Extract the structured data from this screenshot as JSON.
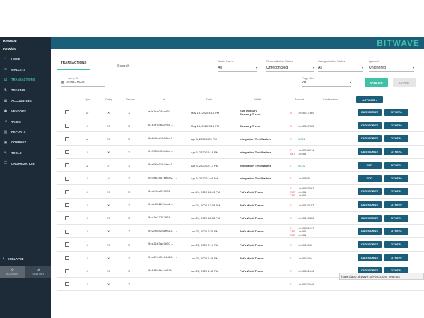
{
  "app": {
    "org_name": "Bitwave",
    "user_name": "Pat White",
    "logo": "BITWAVE",
    "brand_color": "#1b5e79",
    "accent_color": "#3fc1a5"
  },
  "sidebar": {
    "items": [
      {
        "label": "HOME",
        "icon": "home-icon"
      },
      {
        "label": "WALLETS",
        "icon": "wallet-icon"
      },
      {
        "label": "TRANSACTIONS",
        "icon": "transactions-icon",
        "active": true
      },
      {
        "label": "TRADING",
        "icon": "trading-icon"
      },
      {
        "label": "ACCOUNTING",
        "icon": "accounting-icon"
      },
      {
        "label": "VENDORS",
        "icon": "vendors-icon"
      },
      {
        "label": "TAXES",
        "icon": "taxes-icon"
      },
      {
        "label": "REPORTS",
        "icon": "reports-icon"
      },
      {
        "label": "COMPANY",
        "icon": "company-icon"
      },
      {
        "label": "TOOLS",
        "icon": "tools-icon"
      },
      {
        "label": "ORGANIZATION",
        "icon": "organization-icon"
      }
    ],
    "collapse_label": "COLLAPSE",
    "account_label": "ACCOUNT",
    "signout_label": "SIGN OUT"
  },
  "main": {
    "tab_label": "TRANSACTIONS",
    "search_placeholder": "Search",
    "filters": {
      "wallet_name": {
        "label": "Wallet Name",
        "value": "All"
      },
      "reconciliation": {
        "label": "Reconciliation Status",
        "value": "Unreconciled"
      },
      "categorization": {
        "label": "Categorization Status",
        "value": "All"
      },
      "ignored": {
        "label": "Ignored",
        "value": "Unignored"
      },
      "jump_to": {
        "label": "Jump To",
        "value": "2020-08-01"
      },
      "page_size": {
        "label": "Page Size",
        "value": "20"
      }
    },
    "earlier_label": "EARLIER",
    "later_label": "LATER"
  },
  "table": {
    "headers": {
      "type": "Type",
      "categ": "Categ",
      "reconc": "Reconc",
      "id": "Id",
      "date": "Date",
      "wallet": "Wallet",
      "amount": "Amount",
      "confirmation": "Confirmation",
      "actions": "ACTIONS"
    },
    "rows": [
      {
        "type": "sync",
        "categ": "x",
        "reconc": "x",
        "id": "a8e7cc94cdd02...",
        "date": "May 13, 2020 4:15 PM",
        "wallet": [
          "EMI Treasury",
          "Treasury Trezor"
        ],
        "amounts": [
          {
            "sym": "B",
            "val": "-0.00017869"
          }
        ],
        "pos": false,
        "primary": "CATEGORIZE",
        "secondary": "OTHER"
      },
      {
        "type": "out",
        "categ": "x",
        "reconc": "x",
        "id": "6163f8d6a4f4d...",
        "date": "May 13, 2020 3:14 PM",
        "wallet": [
          "Treasury Trezor"
        ],
        "amounts": [
          {
            "sym": "B",
            "val": "-0.00067505"
          }
        ],
        "pos": false,
        "primary": "CATEGORIZE",
        "secondary": "OTHER"
      },
      {
        "type": "in",
        "categ": "x",
        "reconc": "x",
        "id": "0ebb6de1b9fe42...",
        "date": "Apr 3, 2020 1:23 PM",
        "wallet": [
          "Integration Test Wallets"
        ],
        "amounts": [
          {
            "sym": "Ξ",
            "val": "0.002"
          }
        ],
        "pos": true,
        "primary": "CATEGORIZE",
        "secondary": "OTHER"
      },
      {
        "type": "out",
        "categ": "x",
        "reconc": "x",
        "id": "0x7356b53fd4d...",
        "date": "Apr 3, 2020 12:16 PM",
        "wallet": [
          "Integration Test Wallets"
        ],
        "amounts": [
          {
            "sym": "Ξ",
            "val": "-0.00026614"
          },
          {
            "sym": "BAT",
            "val": "-0.001"
          }
        ],
        "pos": false,
        "primary": "CATEGORIZE",
        "secondary": "OTHER"
      },
      {
        "type": "in",
        "categ": "check",
        "reconc": "x",
        "id": "0xe5fe01b2da42...",
        "date": "Apr 3, 2020 12:13 PM",
        "wallet": [
          "Integration Test Wallets"
        ],
        "amounts": [
          {
            "sym": "Ξ",
            "val": "0.002"
          }
        ],
        "pos": true,
        "primary": "EDIT",
        "secondary": "OTHER"
      },
      {
        "type": "out",
        "categ": "check",
        "reconc": "x",
        "id": "0x4e6189fee4d9...",
        "date": "Apr 3, 2020 11:46 AM",
        "wallet": [
          "Integration Test Wallets"
        ],
        "amounts": [
          {
            "sym": "Ξ",
            "val": "-0.00985"
          }
        ],
        "pos": false,
        "primary": "EDIT",
        "secondary": "OTHER"
      },
      {
        "type": "out",
        "categ": "x",
        "reconc": "x",
        "id": "0xab2ce931530...",
        "date": "Jun 24, 2020 12:40 PM",
        "wallet": [
          "Pat's Work Trezor"
        ],
        "amounts": [
          {
            "sym": "Ξ",
            "val": "-0.00153691"
          },
          {
            "sym": "CHT",
            "val": "-0.001"
          },
          {
            "sym": "CHT",
            "val": "-0.001"
          }
        ],
        "pos": false,
        "primary": "CATEGORIZE",
        "secondary": "OTHER"
      },
      {
        "type": "out",
        "categ": "x",
        "reconc": "x",
        "id": "0xab5b929fea2...",
        "date": "Jun 24, 2020 12:39 PM",
        "wallet": [
          "Pat's Work Trezor"
        ],
        "amounts": [
          {
            "sym": "Ξ",
            "val": "-0.00133117"
          }
        ],
        "pos": false,
        "primary": "CATEGORIZE",
        "secondary": "OTHER"
      },
      {
        "type": "out",
        "categ": "x",
        "reconc": "x",
        "id": "0xa7e72752658...",
        "date": "Jun 24, 2020 12:38 PM",
        "wallet": [
          "Pat's Work Trezor"
        ],
        "amounts": [
          {
            "sym": "Ξ",
            "val": "-0.00610436"
          }
        ],
        "pos": false,
        "primary": "CATEGORIZE",
        "secondary": "OTHER"
      },
      {
        "type": "out",
        "categ": "x",
        "reconc": "x",
        "id": "0x2c0c82daeb23...",
        "date": "Jun 21, 2020 2:25 PM",
        "wallet": [
          "Pat's Work Trezor"
        ],
        "amounts": [
          {
            "sym": "Ξ",
            "val": "-0.00051217"
          },
          {
            "sym": "CHT",
            "val": "-0.001"
          },
          {
            "sym": "CHT",
            "val": "-0.001"
          }
        ],
        "pos": false,
        "primary": "CATEGORIZE",
        "secondary": "OTHER"
      },
      {
        "type": "out",
        "categ": "x",
        "reconc": "x",
        "id": "0xa21b3ae3b07...",
        "date": "Jun 21, 2020 2:19 PM",
        "wallet": [
          "Pat's Work Trezor"
        ],
        "amounts": [
          {
            "sym": "Ξ",
            "val": "-0.0004059"
          }
        ],
        "pos": false,
        "primary": "CATEGORIZE",
        "secondary": "OTHER"
      },
      {
        "type": "out",
        "categ": "x",
        "reconc": "x",
        "id": "0xa2fd45101d88...",
        "date": "Jun 21, 2020 1:46 PM",
        "wallet": [
          "Pat's Work Trezor"
        ],
        "amounts": [
          {
            "sym": "Ξ",
            "val": "-0.0004064"
          }
        ],
        "pos": false,
        "primary": "CATEGORIZE",
        "secondary": "OTHER"
      },
      {
        "type": "out",
        "categ": "x",
        "reconc": "x",
        "id": "0x5f6d8ba4d59b...",
        "date": "Jun 21, 2020 1:43 PM",
        "wallet": [
          "Pat's Work Trezor"
        ],
        "amounts": [
          {
            "sym": "Ξ",
            "val": "-0.00061046"
          }
        ],
        "pos": false,
        "primary": "CATEGORIZE",
        "secondary": "OTHER"
      },
      {
        "type": "out",
        "categ": "x",
        "reconc": "x",
        "id": "",
        "date": "",
        "wallet": [],
        "amounts": [
          {
            "sym": "Ξ",
            "val": "-0.00032646"
          }
        ],
        "pos": false,
        "primary": "",
        "secondary": ""
      }
    ]
  },
  "status_url": "https://app.bitwave.io/#/account_settings"
}
